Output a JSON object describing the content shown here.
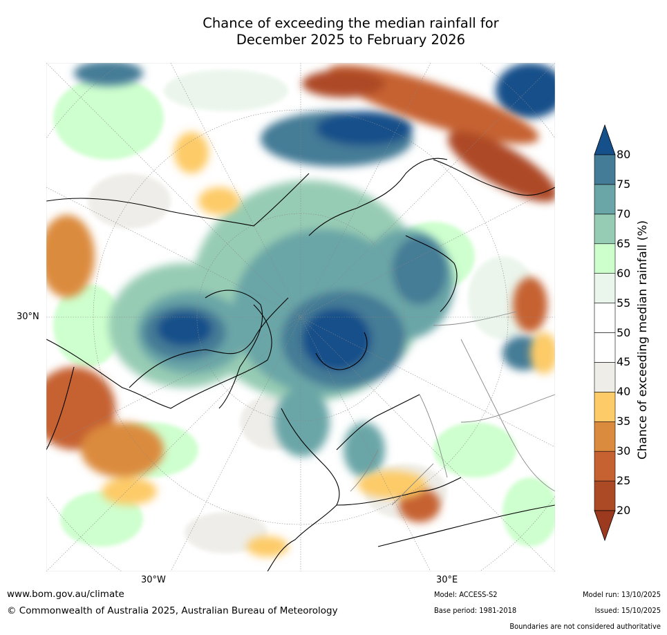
{
  "title_line1": "Chance of exceeding the median rainfall for",
  "title_line2": "December 2025 to February 2026",
  "map": {
    "lat_label": "30°N",
    "lon_labels": [
      "30°W",
      "30°E"
    ]
  },
  "colorbar": {
    "label": "Chance of exceeding median rainfall (%)",
    "ticks": [
      "20",
      "25",
      "30",
      "35",
      "40",
      "45",
      "50",
      "55",
      "60",
      "65",
      "70",
      "75",
      "80"
    ],
    "colors": [
      "#9b3a1e",
      "#ad4a26",
      "#c66231",
      "#db8b3e",
      "#fdcb67",
      "#eeede8",
      "#ffffff",
      "#ffffff",
      "#eaf5eb",
      "#ccffcc",
      "#97ccb4",
      "#6aa6a7",
      "#447b96",
      "#15508a"
    ]
  },
  "footer": {
    "website": "www.bom.gov.au/climate",
    "copyright": "© Commonwealth of Australia 2025, Australian Bureau of Meteorology",
    "model": "Model: ACCESS-S2",
    "base_period": "Base period: 1981-2018",
    "model_run": "Model run: 13/10/2025",
    "issued": "Issued: 15/10/2025",
    "disclaimer": "Boundaries are not considered authoritative"
  }
}
